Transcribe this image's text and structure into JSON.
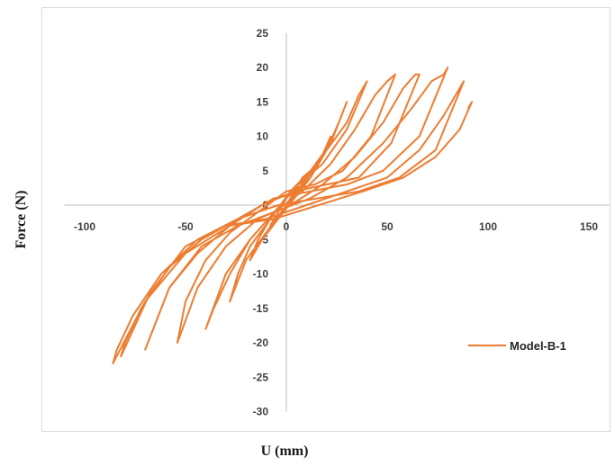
{
  "chart_data": {
    "type": "line",
    "title": "",
    "xlabel": "U (mm)",
    "ylabel": "Force (N)",
    "xlim": [
      -100,
      150
    ],
    "ylim": [
      -30,
      25
    ],
    "x_ticks": [
      "-100",
      "-50",
      "0",
      "50",
      "100",
      "150"
    ],
    "y_ticks": [
      "25",
      "20",
      "15",
      "10",
      "5",
      "0",
      "-5",
      "-10",
      "-15",
      "-20",
      "-25",
      "-30"
    ],
    "grid": false,
    "legend_position": "right",
    "series": [
      {
        "name": "Model-B-1",
        "color": "#ED7D31",
        "x": [
          0,
          4,
          8,
          12,
          8,
          0,
          -4,
          -8,
          -4,
          0,
          6,
          12,
          18,
          22,
          16,
          8,
          0,
          -8,
          -14,
          -18,
          -12,
          -4,
          4,
          12,
          20,
          26,
          30,
          22,
          12,
          2,
          -8,
          -18,
          -24,
          -28,
          -20,
          -10,
          0,
          10,
          20,
          30,
          36,
          40,
          30,
          18,
          6,
          -6,
          -18,
          -28,
          -36,
          -40,
          -30,
          -18,
          -6,
          8,
          22,
          34,
          44,
          50,
          54,
          42,
          28,
          14,
          0,
          -14,
          -28,
          -40,
          -50,
          -54,
          -44,
          -30,
          -14,
          2,
          18,
          34,
          48,
          58,
          64,
          66,
          52,
          36,
          20,
          4,
          -12,
          -28,
          -44,
          -58,
          -66,
          -70,
          -58,
          -42,
          -24,
          -6,
          12,
          30,
          48,
          62,
          72,
          78,
          80,
          66,
          48,
          30,
          12,
          -6,
          -24,
          -42,
          -58,
          -72,
          -80,
          -82,
          -68,
          -50,
          -30,
          -10,
          10,
          30,
          50,
          66,
          78,
          86,
          88,
          74,
          56,
          36,
          16,
          -4,
          -24,
          -44,
          -62,
          -76,
          -84,
          -86,
          -70,
          -50,
          -28,
          -6,
          16,
          38,
          58,
          74,
          86,
          92,
          90
        ],
        "y": [
          0,
          2,
          4,
          5,
          3,
          1,
          -1,
          -3,
          -2,
          0,
          2,
          4,
          7,
          10,
          6,
          3,
          1,
          -2,
          -5,
          -8,
          -5,
          -2,
          1,
          4,
          8,
          12,
          15,
          9,
          5,
          2,
          -2,
          -6,
          -10,
          -14,
          -8,
          -4,
          0,
          4,
          8,
          12,
          16,
          18,
          11,
          6,
          3,
          -1,
          -5,
          -10,
          -15,
          -18,
          -10,
          -5,
          -1,
          2,
          6,
          11,
          16,
          18,
          19,
          10,
          5,
          3,
          2,
          -1,
          -4,
          -8,
          -14,
          -20,
          -12,
          -6,
          -2,
          0,
          3,
          7,
          12,
          17,
          19,
          19,
          9,
          4,
          3,
          2,
          0,
          -3,
          -7,
          -12,
          -18,
          -21,
          -12,
          -6,
          -3,
          -1,
          1,
          4,
          9,
          14,
          18,
          19,
          20,
          10,
          5,
          3,
          2,
          1,
          -2,
          -5,
          -9,
          -15,
          -20,
          -22,
          -13,
          -6,
          -3,
          -2,
          0,
          2,
          4,
          8,
          13,
          17,
          18,
          8,
          4,
          2,
          1,
          0,
          -2,
          -5,
          -10,
          -16,
          -21,
          -23,
          -14,
          -7,
          -3,
          -2,
          0,
          2,
          4,
          7,
          11,
          15,
          14
        ]
      }
    ]
  }
}
